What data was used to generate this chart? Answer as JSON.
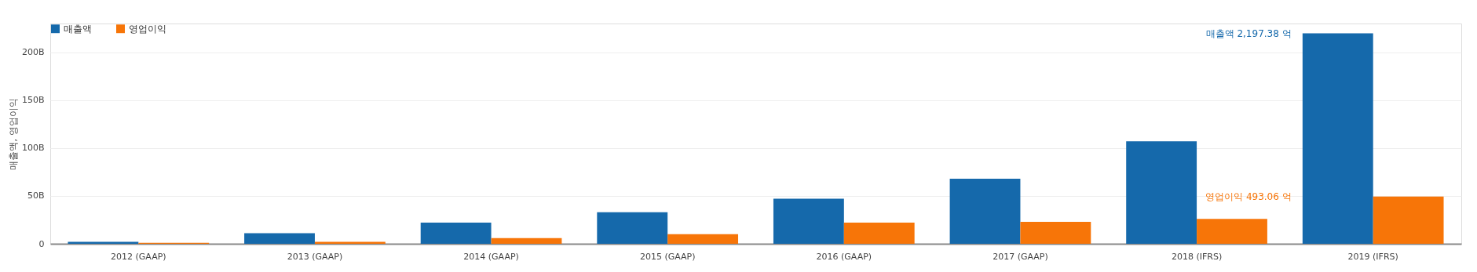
{
  "chart_data": {
    "type": "bar",
    "ylabel": "매출액, 영업이익",
    "categories": [
      "2012 (GAAP)",
      "2013 (GAAP)",
      "2014 (GAAP)",
      "2015 (GAAP)",
      "2016 (GAAP)",
      "2017 (GAAP)",
      "2018 (IFRS)",
      "2019 (IFRS)"
    ],
    "series": [
      {
        "name": "매출액",
        "color": "#1569ab",
        "values": [
          2,
          11,
          22,
          33,
          47,
          68,
          107,
          219.738
        ]
      },
      {
        "name": "영업이익",
        "color": "#f77508",
        "values": [
          1,
          2,
          6,
          10,
          22,
          23,
          26,
          49.306
        ]
      }
    ],
    "ylim": [
      0,
      230
    ],
    "yticks": [
      0,
      {
        "value": 50,
        "label": "50B"
      },
      {
        "value": 100,
        "label": "100B"
      },
      {
        "value": 150,
        "label": "150B"
      },
      {
        "value": 200,
        "label": "200B"
      }
    ],
    "annotations": [
      "매출액 2,197.38 억",
      "영업이익 493.06 억"
    ],
    "grid": "y",
    "legend": "top left"
  }
}
